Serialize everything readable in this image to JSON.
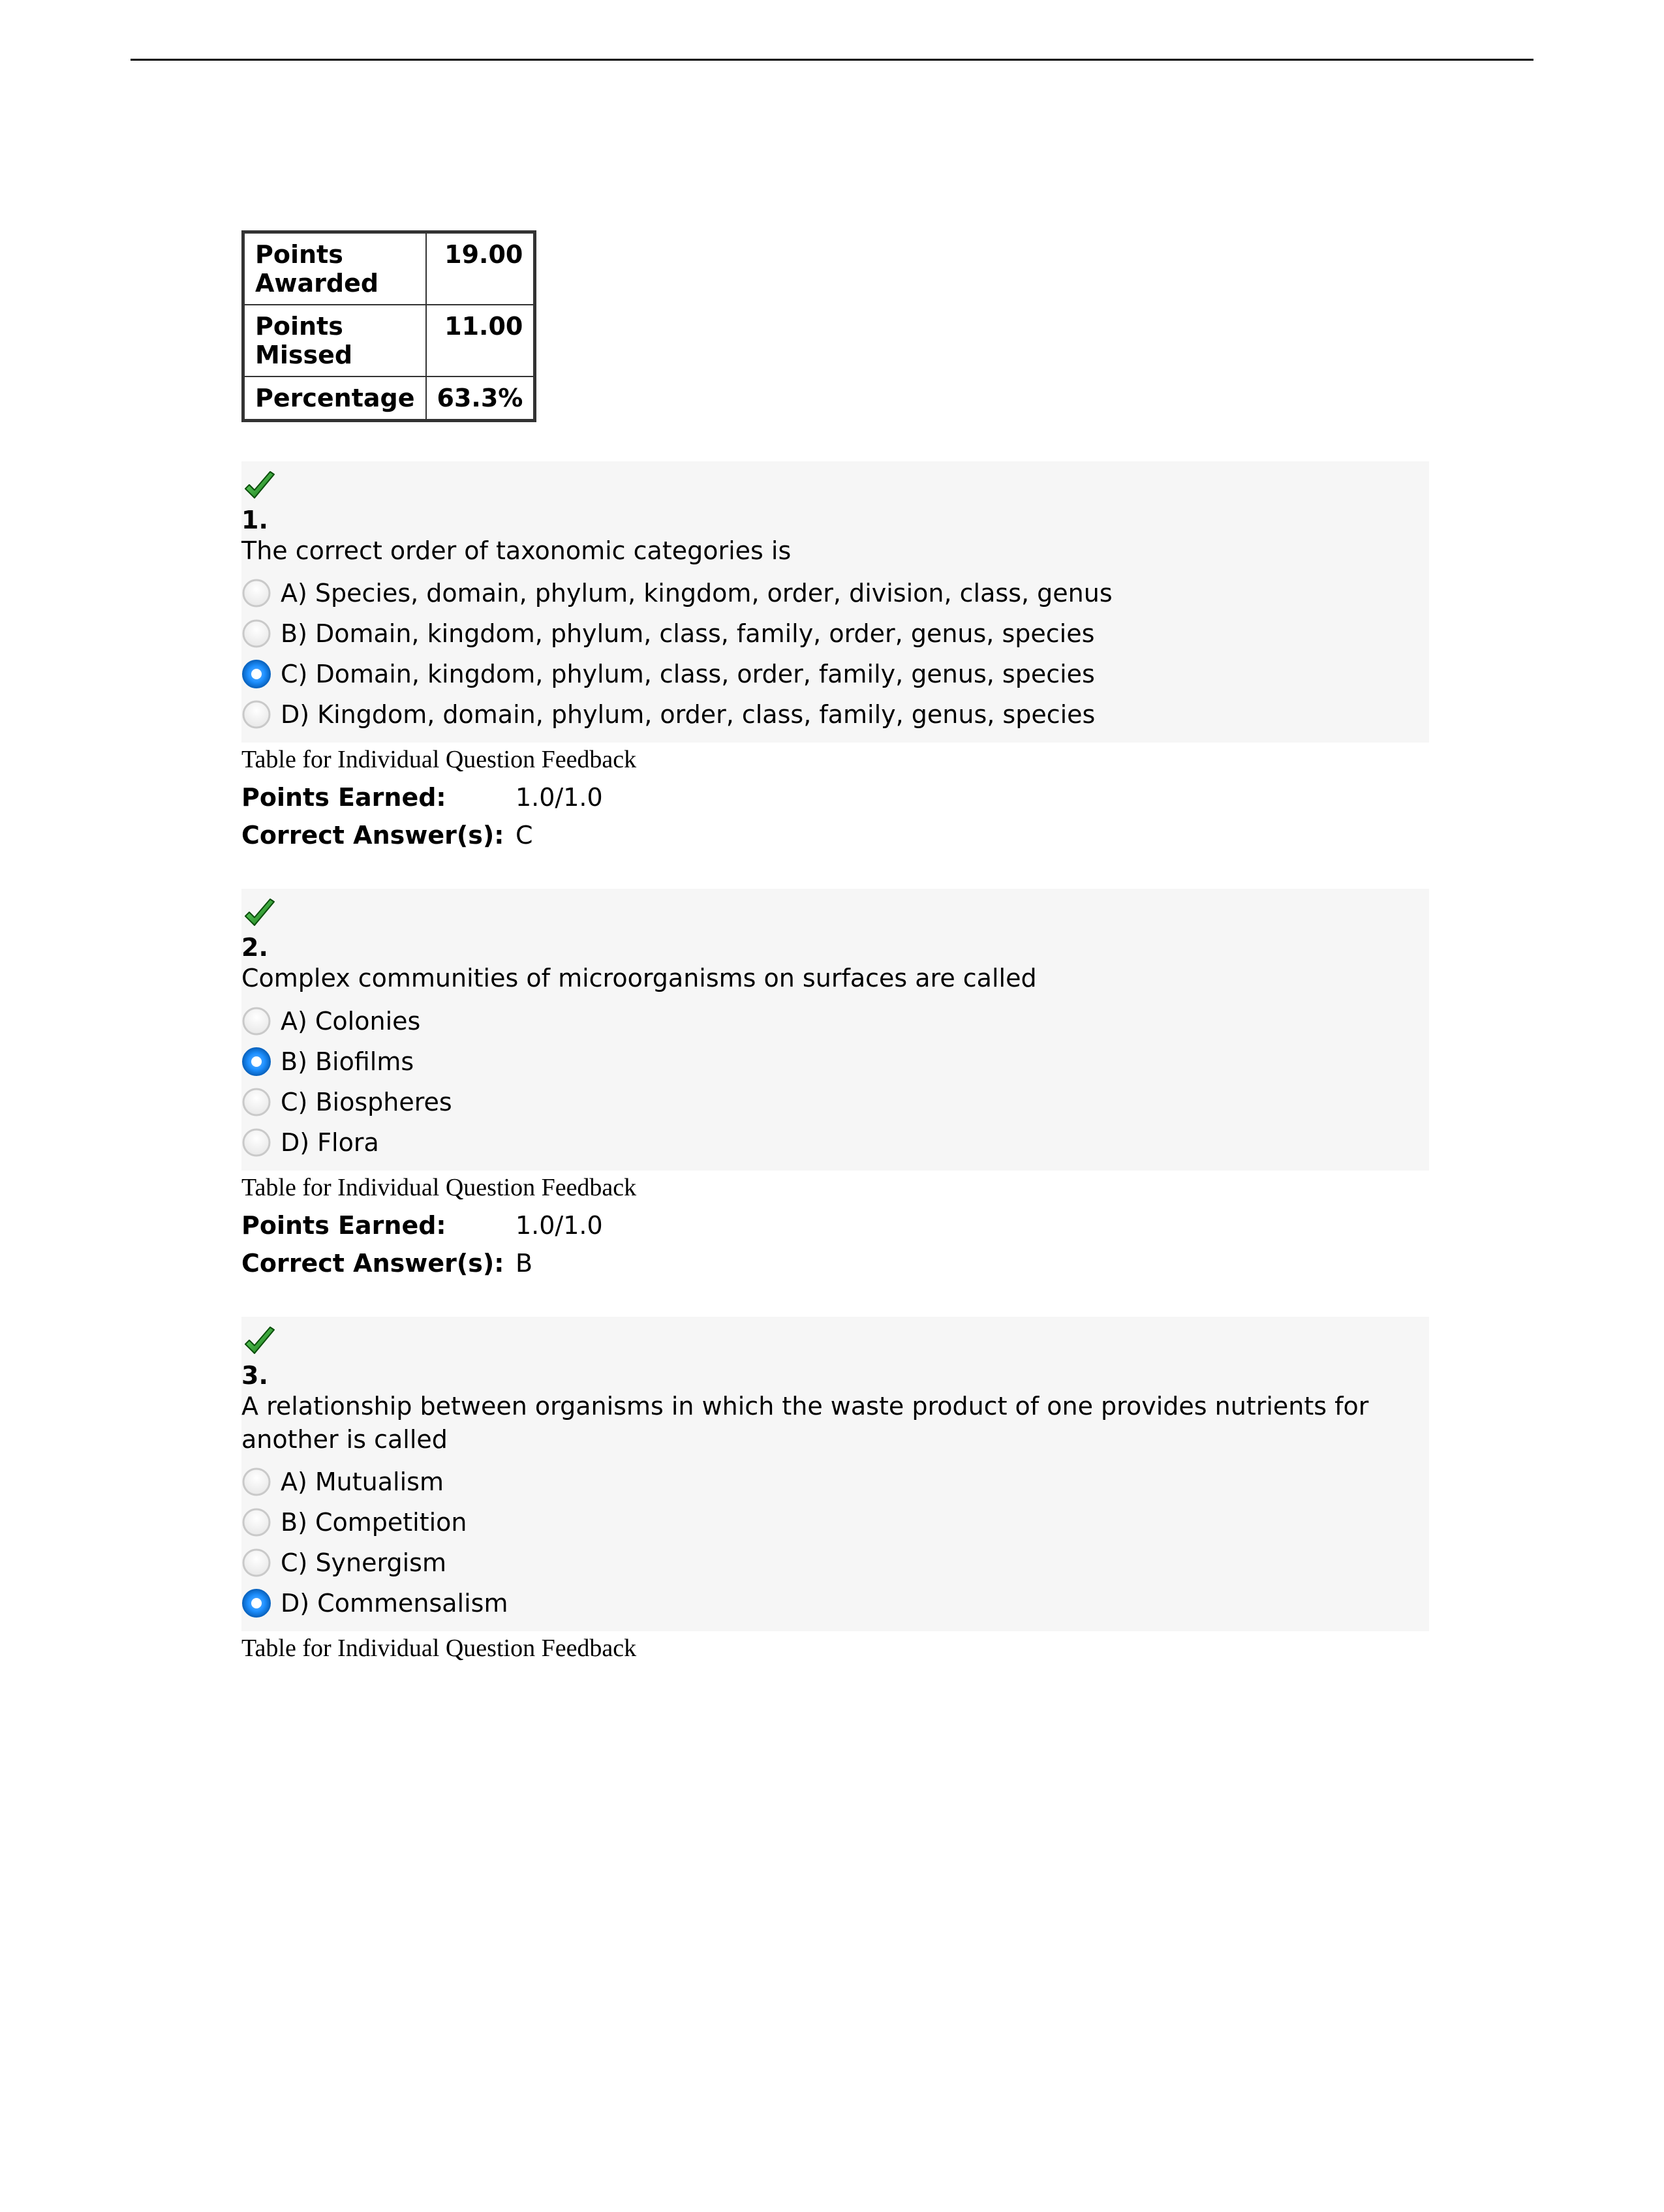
{
  "colors": {
    "page_bg": "#ffffff",
    "text": "#000000",
    "question_bg": "#f6f6f6",
    "table_border": "#333333",
    "radio_unselected_fill": "#ffffff",
    "radio_unselected_stroke": "#c9c9c9",
    "radio_selected_fill": "#1e90ff",
    "radio_selected_glow": "#6fb8ff",
    "radio_selected_dot": "#ffffff",
    "check_green": "#2fa52f",
    "check_green_dark": "#0f6f0f"
  },
  "score": {
    "rows": [
      {
        "label": "Points Awarded",
        "value": "19.00"
      },
      {
        "label": "Points Missed",
        "value": "11.00"
      },
      {
        "label": "Percentage",
        "value": "63.3%"
      }
    ]
  },
  "feedback_caption": "Table for Individual Question Feedback",
  "feedback_labels": {
    "points_earned": "Points Earned:",
    "correct_answers": "Correct Answer(s):"
  },
  "questions": [
    {
      "number": "1.",
      "status": "correct",
      "text": "The correct order of taxonomic categories is",
      "options": [
        {
          "label": "A) Species, domain, phylum, kingdom, order, division, class, genus",
          "selected": false
        },
        {
          "label": "B) Domain, kingdom, phylum, class, family, order, genus, species",
          "selected": false
        },
        {
          "label": "C) Domain, kingdom, phylum, class, order, family, genus, species",
          "selected": true
        },
        {
          "label": "D) Kingdom, domain, phylum, order, class, family, genus, species",
          "selected": false
        }
      ],
      "points_earned": "1.0/1.0",
      "correct_answers": "C",
      "show_feedback_values": true
    },
    {
      "number": "2.",
      "status": "correct",
      "text": "Complex communities of microorganisms on surfaces are called",
      "options": [
        {
          "label": "A) Colonies",
          "selected": false
        },
        {
          "label": "B) Biofilms",
          "selected": true
        },
        {
          "label": "C) Biospheres",
          "selected": false
        },
        {
          "label": "D) Flora",
          "selected": false
        }
      ],
      "points_earned": "1.0/1.0",
      "correct_answers": "B",
      "show_feedback_values": true
    },
    {
      "number": "3.",
      "status": "correct",
      "text": "A relationship between organisms in which the waste product of one provides nutrients for another is called",
      "options": [
        {
          "label": "A) Mutualism",
          "selected": false
        },
        {
          "label": "B) Competition",
          "selected": false
        },
        {
          "label": "C) Synergism",
          "selected": false
        },
        {
          "label": "D) Commensalism",
          "selected": true
        }
      ],
      "points_earned": "",
      "correct_answers": "",
      "show_feedback_values": false
    }
  ]
}
